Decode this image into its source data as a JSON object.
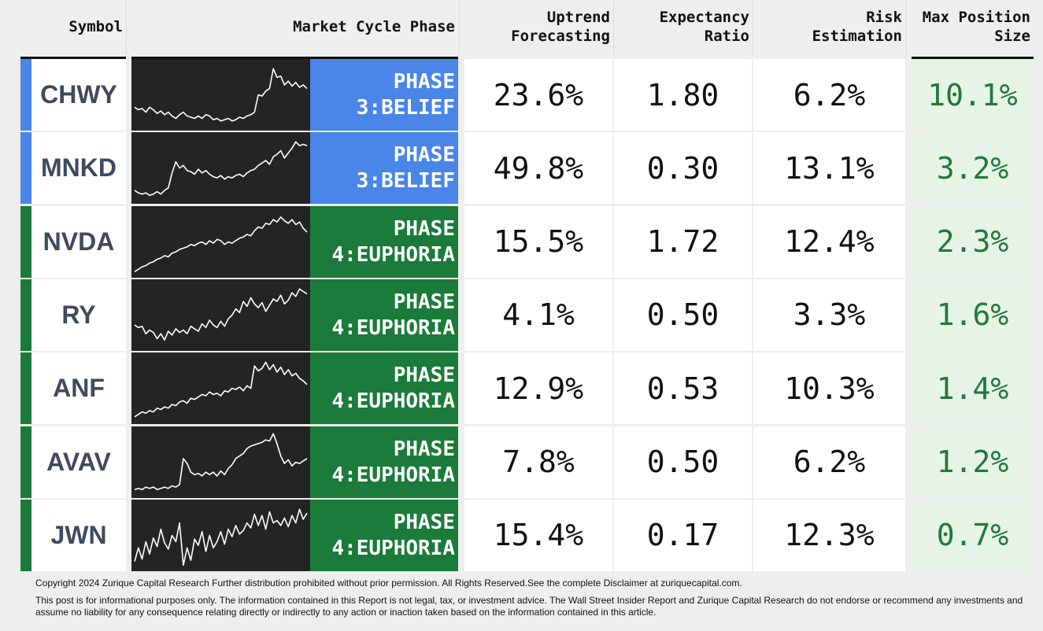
{
  "headers": {
    "symbol": "Symbol",
    "phase": "Market Cycle Phase",
    "uptrend": "Uptrend\nForecasting",
    "expectancy": "Expectancy\nRatio",
    "risk": "Risk\nEstimation",
    "max_position": "Max Position\nSize"
  },
  "colors": {
    "belief": "#4a86e8",
    "euphoria": "#1b7b3a",
    "max_position_text": "#1f7a3a",
    "max_position_bg": "#e7f3e6",
    "sparkline_bg": "#242424"
  },
  "rows": [
    {
      "symbol": "CHWY",
      "phase_label": "PHASE\n3:BELIEF",
      "phase_key": "belief",
      "uptrend": "23.6%",
      "expectancy": "1.80",
      "risk": "6.2%",
      "max_position": "10.1%",
      "sparkline": [
        0.3,
        0.26,
        0.28,
        0.22,
        0.3,
        0.26,
        0.2,
        0.24,
        0.18,
        0.22,
        0.16,
        0.12,
        0.18,
        0.22,
        0.16,
        0.14,
        0.12,
        0.16,
        0.12,
        0.18,
        0.16,
        0.1,
        0.12,
        0.08,
        0.1,
        0.12,
        0.08,
        0.1,
        0.14,
        0.12,
        0.16,
        0.18,
        0.22,
        0.5,
        0.48,
        0.56,
        0.6,
        0.92,
        0.78,
        0.8,
        0.66,
        0.72,
        0.64,
        0.7,
        0.62,
        0.66,
        0.6
      ]
    },
    {
      "symbol": "MNKD",
      "phase_label": "PHASE\n3:BELIEF",
      "phase_key": "belief",
      "uptrend": "49.8%",
      "expectancy": "0.30",
      "risk": "13.1%",
      "max_position": "3.2%",
      "sparkline": [
        0.14,
        0.1,
        0.08,
        0.1,
        0.06,
        0.08,
        0.12,
        0.08,
        0.14,
        0.18,
        0.42,
        0.6,
        0.5,
        0.54,
        0.46,
        0.44,
        0.4,
        0.48,
        0.42,
        0.46,
        0.4,
        0.36,
        0.34,
        0.38,
        0.32,
        0.36,
        0.34,
        0.38,
        0.4,
        0.36,
        0.42,
        0.46,
        0.48,
        0.54,
        0.58,
        0.62,
        0.56,
        0.68,
        0.72,
        0.78,
        0.66,
        0.74,
        0.82,
        0.92,
        0.86,
        0.88,
        0.86
      ]
    },
    {
      "symbol": "NVDA",
      "phase_label": "PHASE\n4:EUPHORIA",
      "phase_key": "euphoria",
      "uptrend": "15.5%",
      "expectancy": "1.72",
      "risk": "12.4%",
      "max_position": "2.3%",
      "sparkline": [
        0.02,
        0.06,
        0.1,
        0.12,
        0.16,
        0.18,
        0.22,
        0.24,
        0.28,
        0.26,
        0.32,
        0.34,
        0.38,
        0.4,
        0.42,
        0.46,
        0.44,
        0.48,
        0.5,
        0.46,
        0.52,
        0.48,
        0.54,
        0.52,
        0.46,
        0.5,
        0.48,
        0.52,
        0.56,
        0.58,
        0.62,
        0.6,
        0.68,
        0.74,
        0.72,
        0.8,
        0.78,
        0.86,
        0.82,
        0.9,
        0.84,
        0.8,
        0.86,
        0.78,
        0.82,
        0.72,
        0.66
      ]
    },
    {
      "symbol": "RY",
      "phase_label": "PHASE\n4:EUPHORIA",
      "phase_key": "euphoria",
      "uptrend": "4.1%",
      "expectancy": "0.50",
      "risk": "3.3%",
      "max_position": "1.6%",
      "sparkline": [
        0.34,
        0.3,
        0.32,
        0.2,
        0.26,
        0.22,
        0.12,
        0.2,
        0.1,
        0.24,
        0.18,
        0.28,
        0.22,
        0.26,
        0.2,
        0.32,
        0.28,
        0.24,
        0.36,
        0.3,
        0.42,
        0.34,
        0.3,
        0.4,
        0.32,
        0.44,
        0.5,
        0.6,
        0.54,
        0.72,
        0.64,
        0.78,
        0.68,
        0.62,
        0.7,
        0.56,
        0.66,
        0.76,
        0.72,
        0.82,
        0.68,
        0.74,
        0.86,
        0.8,
        0.92,
        0.88,
        0.84
      ]
    },
    {
      "symbol": "ANF",
      "phase_label": "PHASE\n4:EUPHORIA",
      "phase_key": "euphoria",
      "uptrend": "12.9%",
      "expectancy": "0.53",
      "risk": "10.3%",
      "max_position": "1.4%",
      "sparkline": [
        0.04,
        0.08,
        0.12,
        0.1,
        0.14,
        0.12,
        0.18,
        0.16,
        0.2,
        0.18,
        0.24,
        0.22,
        0.28,
        0.3,
        0.26,
        0.34,
        0.32,
        0.36,
        0.4,
        0.38,
        0.44,
        0.4,
        0.42,
        0.38,
        0.46,
        0.44,
        0.5,
        0.48,
        0.52,
        0.46,
        0.54,
        0.5,
        0.86,
        0.78,
        0.82,
        0.92,
        0.8,
        0.88,
        0.76,
        0.84,
        0.72,
        0.8,
        0.7,
        0.74,
        0.66,
        0.62,
        0.56
      ]
    },
    {
      "symbol": "AVAV",
      "phase_label": "PHASE\n4:EUPHORIA",
      "phase_key": "euphoria",
      "uptrend": "7.8%",
      "expectancy": "0.50",
      "risk": "6.2%",
      "max_position": "1.2%",
      "sparkline": [
        0.06,
        0.08,
        0.06,
        0.1,
        0.08,
        0.1,
        0.06,
        0.08,
        0.1,
        0.08,
        0.12,
        0.1,
        0.14,
        0.56,
        0.48,
        0.34,
        0.3,
        0.32,
        0.28,
        0.34,
        0.3,
        0.34,
        0.28,
        0.36,
        0.3,
        0.4,
        0.46,
        0.56,
        0.6,
        0.64,
        0.72,
        0.76,
        0.78,
        0.8,
        0.82,
        0.86,
        0.84,
        0.96,
        0.8,
        0.6,
        0.48,
        0.54,
        0.44,
        0.5,
        0.48,
        0.52,
        0.56
      ]
    },
    {
      "symbol": "JWN",
      "phase_label": "PHASE\n4:EUPHORIA",
      "phase_key": "euphoria",
      "uptrend": "15.4%",
      "expectancy": "0.17",
      "risk": "12.3%",
      "max_position": "0.7%",
      "sparkline": [
        0.08,
        0.3,
        0.12,
        0.4,
        0.2,
        0.46,
        0.32,
        0.6,
        0.38,
        0.28,
        0.5,
        0.4,
        0.7,
        0.02,
        0.3,
        0.1,
        0.44,
        0.34,
        0.56,
        0.24,
        0.5,
        0.3,
        0.4,
        0.56,
        0.36,
        0.6,
        0.48,
        0.66,
        0.52,
        0.58,
        0.7,
        0.62,
        0.84,
        0.66,
        0.82,
        0.6,
        0.88,
        0.7,
        0.74,
        0.66,
        0.78,
        0.64,
        0.82,
        0.7,
        0.92,
        0.76,
        0.86
      ]
    }
  ],
  "footer": {
    "copyright": "Copyright 2024 Zurique Capital Research Further distribution prohibited without prior permission. All Rights Reserved.See the complete Disclaimer at zuriquecapital.com.",
    "disclaimer": "This post is for informational purposes only. The information contained in this Report is not legal, tax, or investment advice. The Wall Street Insider Report and Zurique Capital Research do not endorse or recommend any investments and assume no liability for any consequence relating directly or indirectly to any action or inaction taken based on the information contained in this article."
  }
}
